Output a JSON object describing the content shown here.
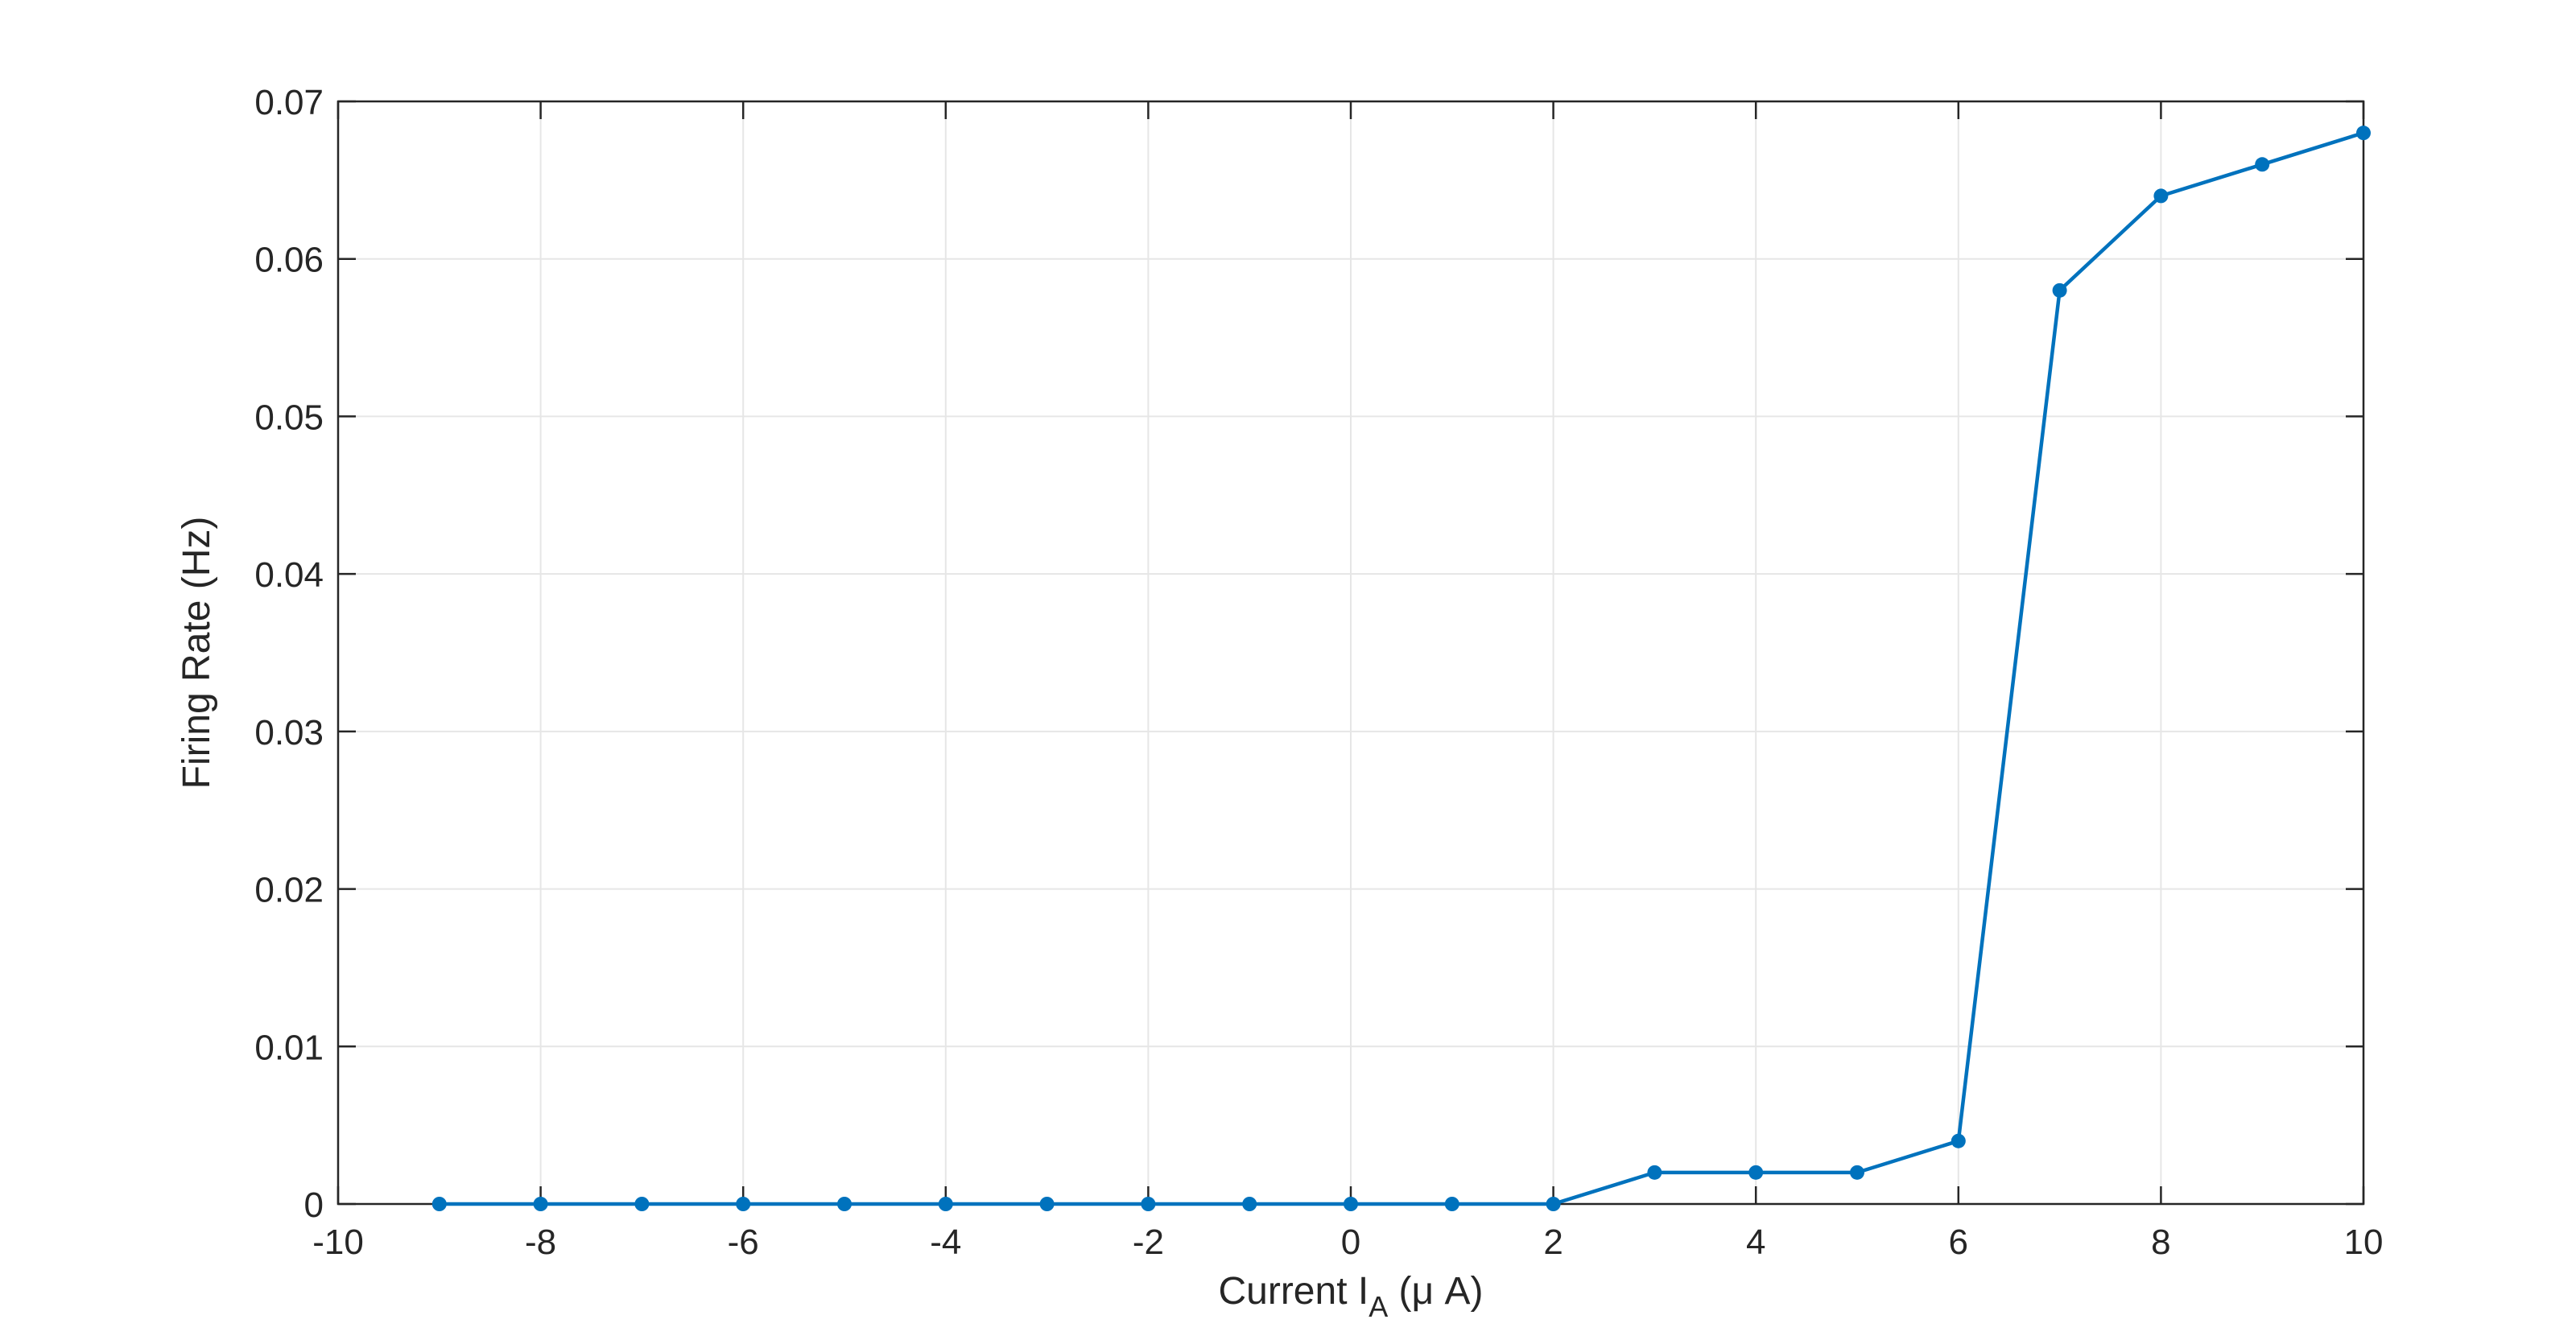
{
  "chart_data": {
    "type": "line",
    "title": "",
    "xlabel": {
      "prefix": "Current I",
      "subscript": "A",
      "suffix": " (μ A)"
    },
    "ylabel": "Firing Rate (Hz)",
    "xlim": [
      -10,
      10
    ],
    "ylim": [
      0,
      0.07
    ],
    "xticks": [
      -10,
      -8,
      -6,
      -4,
      -2,
      0,
      2,
      4,
      6,
      8,
      10
    ],
    "xtick_labels": [
      "-10",
      "-8",
      "-6",
      "-4",
      "-2",
      "0",
      "2",
      "4",
      "6",
      "8",
      "10"
    ],
    "yticks": [
      0,
      0.01,
      0.02,
      0.03,
      0.04,
      0.05,
      0.06,
      0.07
    ],
    "ytick_labels": [
      "0",
      "0.01",
      "0.02",
      "0.03",
      "0.04",
      "0.05",
      "0.06",
      "0.07"
    ],
    "grid": true,
    "legend": "none",
    "series": [
      {
        "color": "#0072BD",
        "marker": "circle",
        "x": [
          -9,
          -8,
          -7,
          -6,
          -5,
          -4,
          -3,
          -2,
          -1,
          0,
          1,
          2,
          3,
          4,
          5,
          6,
          7,
          8,
          9,
          10
        ],
        "y": [
          0,
          0,
          0,
          0,
          0,
          0,
          0,
          0,
          0,
          0,
          0,
          0,
          0.002,
          0.002,
          0.002,
          0.004,
          0.058,
          0.064,
          0.066,
          0.068
        ]
      }
    ]
  }
}
